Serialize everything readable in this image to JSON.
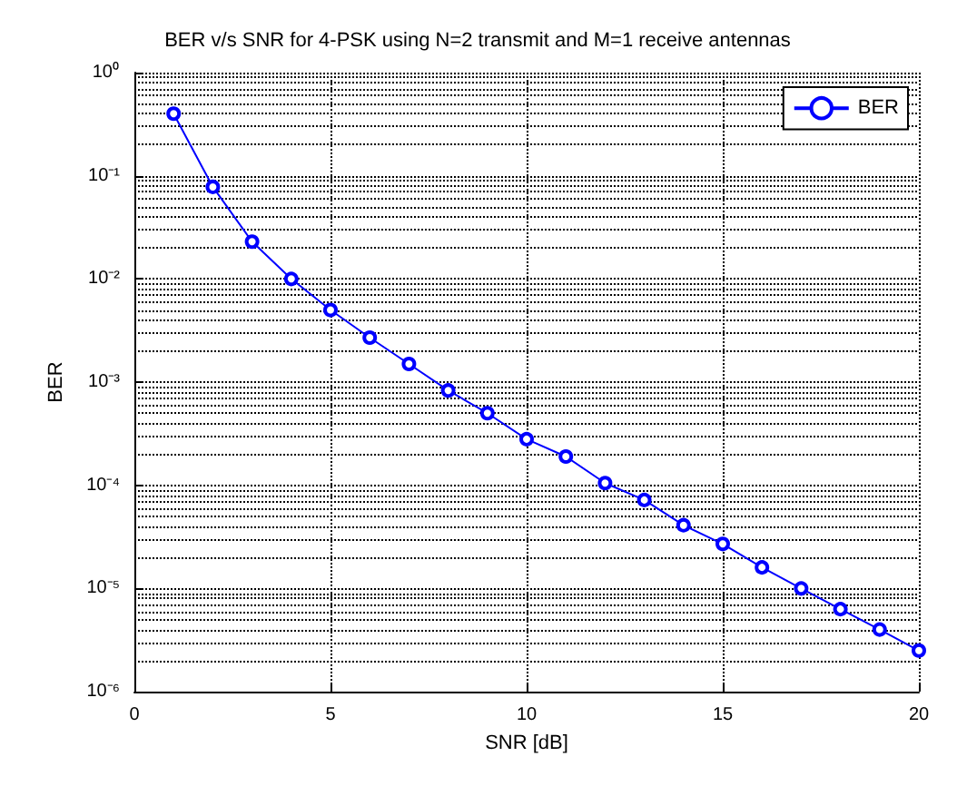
{
  "chart_data": {
    "type": "line",
    "title": "BER v/s SNR for 4-PSK using N=2 transmit and M=1 receive antennas",
    "xlabel": "SNR [dB]",
    "ylabel": "BER",
    "x": [
      1,
      2,
      3,
      4,
      5,
      6,
      7,
      8,
      9,
      10,
      11,
      12,
      13,
      14,
      15,
      16,
      17,
      18,
      19,
      20
    ],
    "series": [
      {
        "name": "BER",
        "color": "#0000ff",
        "values": [
          0.4,
          0.078,
          0.023,
          0.01,
          0.005,
          0.0027,
          0.0015,
          0.00083,
          0.0005,
          0.00028,
          0.00019,
          0.000105,
          7.2e-05,
          4.1e-05,
          2.7e-05,
          1.6e-05,
          1e-05,
          6.3e-06,
          4e-06,
          2.5e-06
        ]
      }
    ],
    "log": "y",
    "xlim": [
      0,
      20
    ],
    "xticks": [
      0,
      5,
      10,
      15,
      20
    ],
    "ylim": [
      1e-06,
      1
    ],
    "yticks": [
      {
        "value": 1e-06,
        "label": "10⁻⁶"
      },
      {
        "value": 1e-05,
        "label": "10⁻⁵"
      },
      {
        "value": 0.0001,
        "label": "10⁻⁴"
      },
      {
        "value": 0.001,
        "label": "10⁻³"
      },
      {
        "value": 0.01,
        "label": "10⁻²"
      },
      {
        "value": 0.1,
        "label": "10⁻¹"
      },
      {
        "value": 1,
        "label": "10⁰"
      }
    ],
    "grid": true,
    "legend": "top right",
    "marker": "circle",
    "line_style": "solid"
  }
}
